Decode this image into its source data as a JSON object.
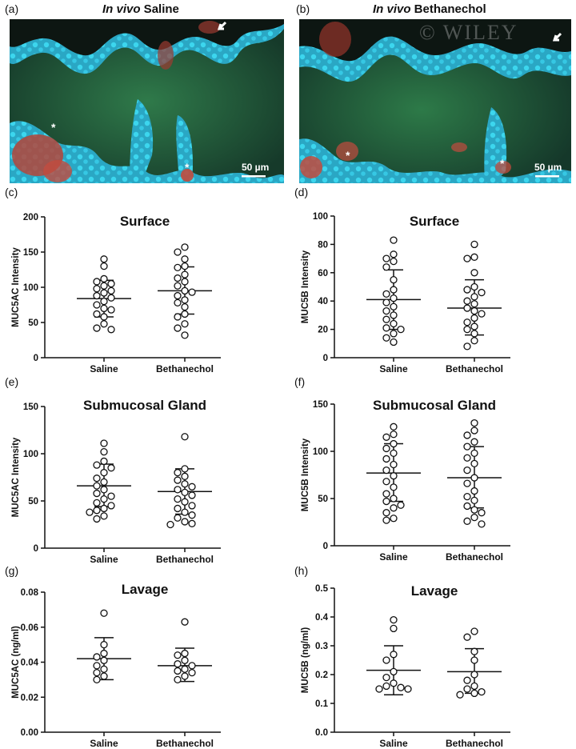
{
  "images": [
    {
      "label": "(a)",
      "title_prefix": "In vivo",
      "title_rest": " Saline",
      "scale_bar": "50 µm"
    },
    {
      "label": "(b)",
      "title_prefix": "In vivo",
      "title_rest": " Bethanechol",
      "scale_bar": "50 µm",
      "watermark": "© WILEY"
    }
  ],
  "chart_data": [
    {
      "id": "c",
      "label": "(c)",
      "type": "scatter",
      "title": "Surface",
      "ylabel": "MUC5AC Intensity",
      "categories": [
        "Saline",
        "Bethanechol"
      ],
      "ylim": [
        0,
        200
      ],
      "yticks": [
        0,
        50,
        100,
        150,
        200
      ],
      "tick_labels": [
        "0",
        "50",
        "100",
        "150",
        "200"
      ],
      "series": [
        {
          "category": "Saline",
          "values": [
            140,
            130,
            112,
            108,
            105,
            102,
            98,
            95,
            92,
            88,
            85,
            80,
            75,
            70,
            68,
            62,
            58,
            48,
            42,
            40
          ],
          "mean": 84,
          "sd_low": 58,
          "sd_high": 110
        },
        {
          "category": "Bethanechol",
          "values": [
            157,
            150,
            140,
            130,
            128,
            118,
            113,
            108,
            102,
            95,
            93,
            88,
            82,
            78,
            72,
            62,
            58,
            48,
            42,
            32
          ],
          "mean": 95,
          "sd_low": 62,
          "sd_high": 129
        }
      ]
    },
    {
      "id": "d",
      "label": "(d)",
      "type": "scatter",
      "title": "Surface",
      "ylabel": "MUC5B Intensity",
      "categories": [
        "Saline",
        "Bethanechol"
      ],
      "ylim": [
        0,
        100
      ],
      "yticks": [
        0,
        20,
        40,
        60,
        80,
        100
      ],
      "tick_labels": [
        "0",
        "20",
        "40",
        "60",
        "80",
        "100"
      ],
      "series": [
        {
          "category": "Saline",
          "values": [
            83,
            73,
            70,
            68,
            64,
            55,
            48,
            45,
            42,
            39,
            36,
            33,
            30,
            27,
            24,
            21,
            20,
            17,
            14,
            11
          ],
          "mean": 41,
          "sd_low": 20,
          "sd_high": 62
        },
        {
          "category": "Bethanechol",
          "values": [
            80,
            71,
            70,
            60,
            50,
            48,
            46,
            43,
            40,
            38,
            35,
            33,
            31,
            28,
            25,
            22,
            20,
            17,
            12,
            8
          ],
          "mean": 35,
          "sd_low": 16,
          "sd_high": 55
        }
      ]
    },
    {
      "id": "e",
      "label": "(e)",
      "type": "scatter",
      "title": "Submucosal Gland",
      "ylabel": "MUC5AC Intensity",
      "categories": [
        "Saline",
        "Bethanechol"
      ],
      "ylim": [
        0,
        150
      ],
      "yticks": [
        0,
        50,
        100,
        150
      ],
      "tick_labels": [
        "0",
        "50",
        "100",
        "150"
      ],
      "series": [
        {
          "category": "Saline",
          "values": [
            111,
            102,
            92,
            88,
            85,
            80,
            74,
            70,
            66,
            62,
            58,
            55,
            52,
            48,
            45,
            42,
            40,
            38,
            34,
            31
          ],
          "mean": 66,
          "sd_low": 44,
          "sd_high": 89
        },
        {
          "category": "Bethanechol",
          "values": [
            118,
            84,
            80,
            76,
            72,
            68,
            65,
            62,
            59,
            56,
            52,
            49,
            45,
            42,
            38,
            35,
            32,
            28,
            26,
            25
          ],
          "mean": 60,
          "sd_low": 36,
          "sd_high": 84
        }
      ]
    },
    {
      "id": "f",
      "label": "(f)",
      "type": "scatter",
      "title": "Submucosal Gland",
      "ylabel": "MUC5B Intensity",
      "categories": [
        "Saline",
        "Bethanechol"
      ],
      "ylim": [
        0,
        150
      ],
      "yticks": [
        0,
        50,
        100,
        150
      ],
      "tick_labels": [
        "0",
        "50",
        "100",
        "150"
      ],
      "series": [
        {
          "category": "Saline",
          "values": [
            126,
            118,
            115,
            108,
            103,
            98,
            92,
            86,
            80,
            74,
            68,
            62,
            55,
            50,
            47,
            43,
            40,
            35,
            29,
            27
          ],
          "mean": 77,
          "sd_low": 47,
          "sd_high": 108
        },
        {
          "category": "Bethanechol",
          "values": [
            130,
            122,
            117,
            110,
            105,
            98,
            93,
            87,
            80,
            72,
            66,
            58,
            52,
            48,
            42,
            38,
            35,
            30,
            26,
            23
          ],
          "mean": 72,
          "sd_low": 40,
          "sd_high": 105
        }
      ]
    },
    {
      "id": "g",
      "label": "(g)",
      "type": "scatter",
      "title": "Lavage",
      "ylabel": "MUC5AC (ng/ml)",
      "categories": [
        "Saline",
        "Bethanechol"
      ],
      "ylim": [
        0,
        0.08
      ],
      "yticks": [
        0,
        0.02,
        0.04,
        0.06,
        0.08
      ],
      "tick_labels": [
        "0.00",
        "0.02",
        "0.04",
        "0.06",
        "0.08"
      ],
      "series": [
        {
          "category": "Saline",
          "values": [
            0.068,
            0.05,
            0.045,
            0.043,
            0.041,
            0.038,
            0.036,
            0.034,
            0.032,
            0.03
          ],
          "mean": 0.042,
          "sd_low": 0.03,
          "sd_high": 0.054
        },
        {
          "category": "Bethanechol",
          "values": [
            0.063,
            0.045,
            0.044,
            0.041,
            0.039,
            0.038,
            0.036,
            0.035,
            0.034,
            0.032,
            0.03
          ],
          "mean": 0.038,
          "sd_low": 0.029,
          "sd_high": 0.048
        }
      ]
    },
    {
      "id": "h",
      "label": "(h)",
      "type": "scatter",
      "title": "Lavage",
      "ylabel": "MUC5B (ng/ml)",
      "categories": [
        "Saline",
        "Bethanechol"
      ],
      "ylim": [
        0,
        0.5
      ],
      "yticks": [
        0,
        0.1,
        0.2,
        0.3,
        0.4,
        0.5
      ],
      "tick_labels": [
        "0.0",
        "0.1",
        "0.2",
        "0.3",
        "0.4",
        "0.5"
      ],
      "series": [
        {
          "category": "Saline",
          "values": [
            0.39,
            0.36,
            0.27,
            0.25,
            0.21,
            0.19,
            0.17,
            0.16,
            0.155,
            0.15,
            0.15
          ],
          "mean": 0.215,
          "sd_low": 0.13,
          "sd_high": 0.3
        },
        {
          "category": "Bethanechol",
          "values": [
            0.35,
            0.33,
            0.28,
            0.25,
            0.2,
            0.18,
            0.16,
            0.15,
            0.14,
            0.135,
            0.13
          ],
          "mean": 0.21,
          "sd_low": 0.135,
          "sd_high": 0.29
        }
      ]
    }
  ]
}
